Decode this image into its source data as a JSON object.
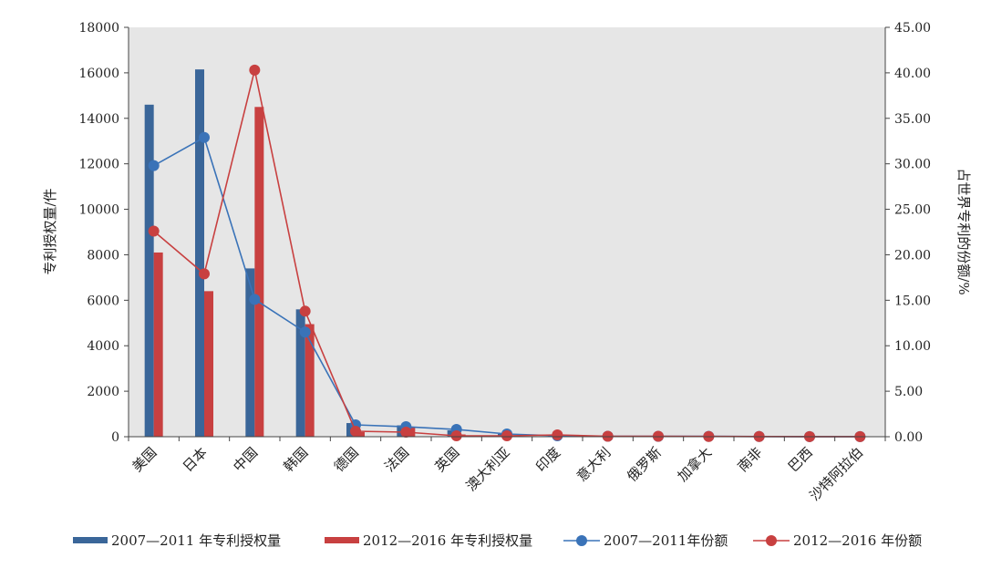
{
  "chart_data": {
    "type": "bar",
    "categories": [
      "美国",
      "日本",
      "中国",
      "韩国",
      "德国",
      "法国",
      "英国",
      "澳大利亚",
      "印度",
      "意大利",
      "俄罗斯",
      "加拿大",
      "南非",
      "巴西",
      "沙特阿拉伯"
    ],
    "series": [
      {
        "name": "2007—2011 年专利授权量",
        "kind": "bar",
        "axis": "left",
        "color": "#3a6699",
        "values": [
          14600,
          16150,
          7400,
          5600,
          600,
          500,
          280,
          120,
          60,
          40,
          30,
          25,
          10,
          5,
          3
        ]
      },
      {
        "name": "2012—2016 年专利授权量",
        "kind": "bar",
        "axis": "left",
        "color": "#c84040",
        "values": [
          8100,
          6400,
          14500,
          4950,
          200,
          400,
          100,
          50,
          80,
          40,
          20,
          20,
          10,
          5,
          3
        ]
      },
      {
        "name": "2007—2011年份额",
        "kind": "line",
        "axis": "right",
        "color": "#3a73b8",
        "values": [
          29.8,
          32.9,
          15.1,
          11.5,
          1.3,
          1.1,
          0.8,
          0.3,
          0.1,
          0.05,
          0.04,
          0.04,
          0.02,
          0.01,
          0.01
        ]
      },
      {
        "name": "2012—2016 年份额",
        "kind": "line",
        "axis": "right",
        "color": "#c84040",
        "values": [
          22.6,
          17.9,
          40.3,
          13.8,
          0.6,
          0.5,
          0.1,
          0.1,
          0.2,
          0.05,
          0.05,
          0.03,
          0.02,
          0.01,
          0.01
        ]
      }
    ],
    "left_axis": {
      "label": "专利授权量/件",
      "range": [
        0,
        18000
      ],
      "ticks": [
        "0",
        "2000",
        "4000",
        "6000",
        "8000",
        "10000",
        "12000",
        "14000",
        "16000",
        "18000"
      ]
    },
    "right_axis": {
      "label": "占世界专利的份额/%",
      "range": [
        0,
        45
      ],
      "ticks": [
        "0.00",
        "5.00",
        "10.00",
        "15.00",
        "20.00",
        "25.00",
        "30.00",
        "35.00",
        "40.00",
        "45.00"
      ]
    },
    "grid": false,
    "legend_position": "bottom",
    "plot_background": "#e6e6e6"
  }
}
